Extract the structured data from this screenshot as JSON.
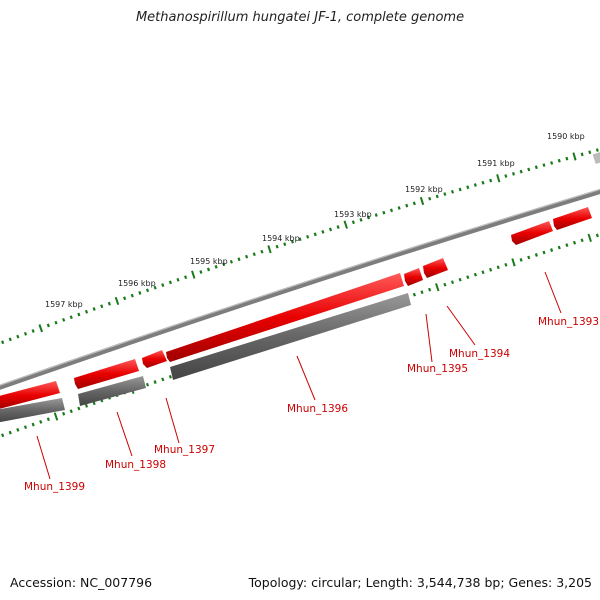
{
  "title": "Methanospirillum hungatei JF-1, complete genome",
  "footer": {
    "accession": "Accession: NC_007796",
    "summary": "Topology: circular; Length: 3,544,738 bp; Genes: 3,205"
  },
  "colors": {
    "gene_forward": "#e80000",
    "gene_reverse": "#666666",
    "backbone": "#808080",
    "tick": "#1a7a1a",
    "label": "#cc0000"
  },
  "ticks": [
    {
      "label": "1590 kbp"
    },
    {
      "label": "1591 kbp"
    },
    {
      "label": "1592 kbp"
    },
    {
      "label": "1593 kbp"
    },
    {
      "label": "1594 kbp"
    },
    {
      "label": "1595 kbp"
    },
    {
      "label": "1596 kbp"
    },
    {
      "label": "1597 kbp"
    }
  ],
  "genes": [
    {
      "label": "Mhun_1393"
    },
    {
      "label": "Mhun_1394"
    },
    {
      "label": "Mhun_1395"
    },
    {
      "label": "Mhun_1396"
    },
    {
      "label": "Mhun_1397"
    },
    {
      "label": "Mhun_1398"
    },
    {
      "label": "Mhun_1399"
    }
  ]
}
